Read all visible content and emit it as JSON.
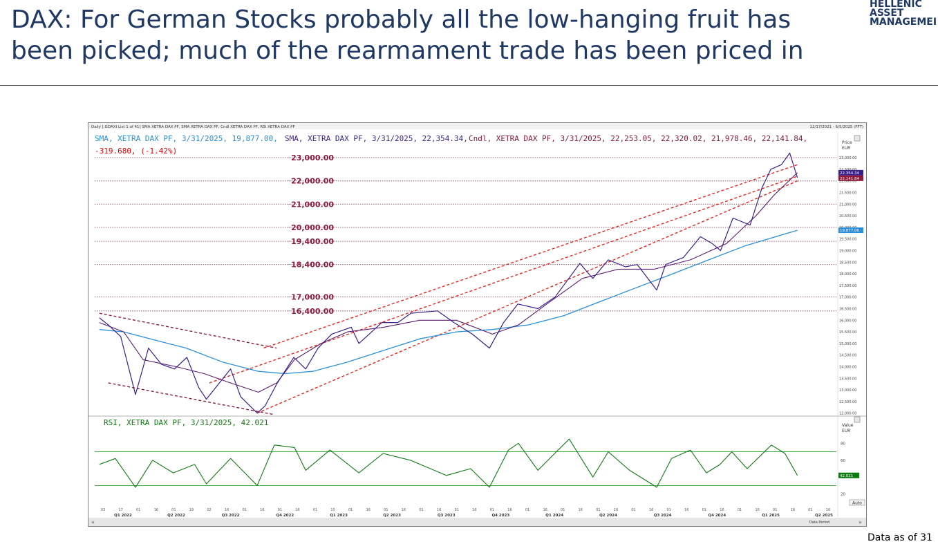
{
  "slide": {
    "title_line1": "DAX: For German Stocks probably all the low-hanging fruit has",
    "title_line2": "been picked; much of the rearmament trade has been priced in",
    "logo_lines": [
      "HELLENIC",
      "ASSET",
      "MANAGEMEI"
    ],
    "footnote": "Data as of 31"
  },
  "chart_data": {
    "type": "line",
    "header_small": "Daily [.GDAXI List 1 of 41] SMA XETRA DAX PF, SMA XETRA DAX PF, Cndl XETRA DAX PF, RSI XETRA DAX PF",
    "date_range": "12/17/2021 - 6/5/2025 (FFT)",
    "legend": {
      "sma200": "SMA, XETRA DAX PF, 3/31/2025, 19,877.00,",
      "sma50": "SMA, XETRA DAX PF, 3/31/2025, 22,354.34,",
      "candle": "Cndl, XETRA DAX PF, 3/31/2025, 22,253.05, 22,320.02, 21,978.46, 22,141.84,",
      "change": "-319.680, (-1.42%)"
    },
    "price_axis_title": [
      "Price",
      "EUR"
    ],
    "price_ticks": [
      "23,000.00",
      "22,500.00",
      "22,000.00",
      "21,500.00",
      "21,000.00",
      "20,500.00",
      "20,000.00",
      "19,500.00",
      "19,000.00",
      "18,500.00",
      "18,000.00",
      "17,500.00",
      "17,000.00",
      "16,500.00",
      "16,000.00",
      "15,500.00",
      "15,000.00",
      "14,500.00",
      "14,000.00",
      "13,500.00",
      "13,000.00",
      "12,500.00",
      "12,000.00"
    ],
    "price_tick_values": [
      23000,
      22500,
      22000,
      21500,
      21000,
      20500,
      20000,
      19500,
      19000,
      18500,
      18000,
      17500,
      17000,
      16500,
      16000,
      15500,
      15000,
      14500,
      14000,
      13500,
      13000,
      12500,
      12000
    ],
    "price_range": [
      11900,
      23600
    ],
    "price_last_labels": [
      "22,354.34",
      "22,141.84",
      "19,877.00"
    ],
    "level_labels": [
      {
        "label": "23,000.00",
        "value": 23000
      },
      {
        "label": "22,000.00",
        "value": 22000
      },
      {
        "label": "21,000.00",
        "value": 21000
      },
      {
        "label": "20,000.00",
        "value": 20000
      },
      {
        "label": "19,400.00",
        "value": 19400
      },
      {
        "label": "18,400.00",
        "value": 18400
      },
      {
        "label": "17,000.00",
        "value": 17000
      },
      {
        "label": "16,400.00",
        "value": 16400
      }
    ],
    "price_series": {
      "name": "Cndl, XETRA DAX PF",
      "dates": [
        "2022-01-05",
        "2022-01-20",
        "2022-02-10",
        "2022-03-07",
        "2022-03-29",
        "2022-04-20",
        "2022-05-12",
        "2022-06-02",
        "2022-06-22",
        "2022-07-05",
        "2022-08-15",
        "2022-09-01",
        "2022-09-29",
        "2022-10-12",
        "2022-11-02",
        "2022-11-30",
        "2022-12-20",
        "2023-01-10",
        "2023-02-02",
        "2023-03-07",
        "2023-03-20",
        "2023-04-28",
        "2023-05-25",
        "2023-06-16",
        "2023-07-31",
        "2023-08-28",
        "2023-09-28",
        "2023-10-27",
        "2023-11-20",
        "2023-12-14",
        "2024-01-17",
        "2024-02-15",
        "2024-03-28",
        "2024-04-12",
        "2024-04-19",
        "2024-05-15",
        "2024-06-13",
        "2024-07-03",
        "2024-08-05",
        "2024-08-20",
        "2024-09-19",
        "2024-10-18",
        "2024-11-07",
        "2024-11-21",
        "2024-12-12",
        "2025-01-10",
        "2025-01-30",
        "2025-02-14",
        "2025-03-04",
        "2025-03-18",
        "2025-03-31"
      ],
      "close": [
        16100,
        15800,
        15300,
        12800,
        14800,
        14100,
        13900,
        14400,
        13100,
        12600,
        13900,
        12700,
        12000,
        12300,
        13300,
        14400,
        13900,
        14800,
        15400,
        15700,
        15000,
        15900,
        15900,
        16300,
        16400,
        15900,
        15400,
        14800,
        15900,
        16700,
        16500,
        17000,
        18450,
        18000,
        17800,
        18600,
        18300,
        18400,
        17300,
        18400,
        18700,
        19600,
        19300,
        19000,
        20400,
        20100,
        21700,
        22500,
        22700,
        23200,
        22141.84
      ]
    },
    "sma_long": {
      "name": "SMA, XETRA DAX PF",
      "dates": [
        "2022-01-05",
        "2022-02-15",
        "2022-04-01",
        "2022-06-01",
        "2022-08-01",
        "2022-10-01",
        "2022-11-15",
        "2023-01-01",
        "2023-03-01",
        "2023-05-01",
        "2023-07-01",
        "2023-09-01",
        "2023-11-01",
        "2024-01-01",
        "2024-03-01",
        "2024-05-01",
        "2024-07-01",
        "2024-09-01",
        "2024-11-01",
        "2025-01-01",
        "2025-03-31"
      ],
      "values": [
        15600,
        15500,
        15200,
        14800,
        14200,
        13800,
        13700,
        13800,
        14200,
        14700,
        15200,
        15500,
        15600,
        15800,
        16200,
        16800,
        17400,
        18000,
        18600,
        19200,
        19877
      ]
    },
    "sma_short": {
      "name": "SMA, XETRA DAX PF",
      "dates": [
        "2022-01-05",
        "2022-02-15",
        "2022-03-20",
        "2022-05-15",
        "2022-07-01",
        "2022-08-15",
        "2022-10-01",
        "2022-11-01",
        "2022-12-01",
        "2023-01-15",
        "2023-03-01",
        "2023-05-01",
        "2023-07-01",
        "2023-09-01",
        "2023-11-01",
        "2023-12-15",
        "2024-02-01",
        "2024-04-01",
        "2024-06-01",
        "2024-08-01",
        "2024-10-01",
        "2024-12-01",
        "2025-01-20",
        "2025-02-20",
        "2025-03-31"
      ],
      "values": [
        15900,
        15500,
        14300,
        14000,
        13700,
        13300,
        12900,
        13300,
        14300,
        15000,
        15500,
        15700,
        16000,
        16000,
        15400,
        15800,
        16700,
        17800,
        18200,
        18200,
        18600,
        19300,
        20500,
        21400,
        22354.34
      ]
    },
    "channels": [
      {
        "name": "downtrend-upper",
        "color": "#8b1a3c",
        "points": [
          [
            "2022-01-05",
            16300
          ],
          [
            "2022-11-01",
            14800
          ]
        ]
      },
      {
        "name": "downtrend-lower",
        "color": "#8b1a3c",
        "points": [
          [
            "2022-01-20",
            13300
          ],
          [
            "2022-10-25",
            11950
          ]
        ]
      },
      {
        "name": "uptrend-upper",
        "color": "#e8231c",
        "points": [
          [
            "2022-10-10",
            14800
          ],
          [
            "2025-03-31",
            22700
          ]
        ]
      },
      {
        "name": "uptrend-lower",
        "color": "#e8231c",
        "points": [
          [
            "2022-09-29",
            12000
          ],
          [
            "2025-03-31",
            22000
          ]
        ]
      },
      {
        "name": "uptrend-mid",
        "color": "#e8231c",
        "points": [
          [
            "2022-07-10",
            13300
          ],
          [
            "2025-03-31",
            22200
          ]
        ]
      }
    ],
    "rsi": {
      "legend": "RSI, XETRA DAX PF, 3/31/2025, 42.021",
      "axis_title": [
        "Value",
        "EUR"
      ],
      "ticks": [
        "80",
        "60",
        "40",
        "20"
      ],
      "tick_values": [
        80,
        60,
        40,
        20
      ],
      "range": [
        5,
        95
      ],
      "levels": [
        70,
        30
      ],
      "last_label": "42.021",
      "dates": [
        "2022-01-05",
        "2022-02-01",
        "2022-03-07",
        "2022-04-05",
        "2022-05-10",
        "2022-06-15",
        "2022-07-05",
        "2022-08-15",
        "2022-09-29",
        "2022-10-28",
        "2022-12-01",
        "2022-12-20",
        "2023-01-30",
        "2023-03-20",
        "2023-04-30",
        "2023-06-15",
        "2023-08-15",
        "2023-09-25",
        "2023-10-27",
        "2023-11-28",
        "2023-12-15",
        "2024-01-17",
        "2024-02-20",
        "2024-03-10",
        "2024-04-19",
        "2024-05-15",
        "2024-06-20",
        "2024-08-05",
        "2024-08-30",
        "2024-10-01",
        "2024-10-28",
        "2024-11-20",
        "2024-12-10",
        "2025-01-05",
        "2025-02-15",
        "2025-03-10",
        "2025-03-31"
      ],
      "values": [
        55,
        62,
        28,
        60,
        45,
        55,
        32,
        62,
        30,
        78,
        75,
        48,
        72,
        45,
        68,
        60,
        42,
        50,
        28,
        72,
        80,
        48,
        72,
        85,
        40,
        70,
        48,
        28,
        62,
        72,
        45,
        55,
        70,
        50,
        78,
        68,
        42.021
      ]
    },
    "x_months": [
      "03",
      "17",
      "01",
      "16",
      "01",
      "19",
      "02",
      "16",
      "01",
      "16",
      "01",
      "16",
      "01",
      "15",
      "01",
      "16",
      "01",
      "16",
      "01",
      "16",
      "01",
      "16",
      "01",
      "16",
      "01",
      "16",
      "01",
      "16",
      "01",
      "16",
      "01",
      "16",
      "01",
      "16",
      "01",
      "16",
      "01",
      "16",
      "01",
      "16",
      "01",
      "16"
    ],
    "quarters": [
      {
        "label": "Q1 2022",
        "date": "2022-02-14"
      },
      {
        "label": "Q2 2022",
        "date": "2022-05-15"
      },
      {
        "label": "Q3 2022",
        "date": "2022-08-15"
      },
      {
        "label": "Q4 2022",
        "date": "2022-11-15"
      },
      {
        "label": "Q1 2023",
        "date": "2023-02-14"
      },
      {
        "label": "Q2 2023",
        "date": "2023-05-15"
      },
      {
        "label": "Q3 2023",
        "date": "2023-08-15"
      },
      {
        "label": "Q4 2023",
        "date": "2023-11-15"
      },
      {
        "label": "Q1 2024",
        "date": "2024-02-14"
      },
      {
        "label": "Q2 2024",
        "date": "2024-05-15"
      },
      {
        "label": "Q3 2024",
        "date": "2024-08-15"
      },
      {
        "label": "Q4 2024",
        "date": "2024-11-15"
      },
      {
        "label": "Q1 2025",
        "date": "2025-02-14"
      },
      {
        "label": "Q2 2025",
        "date": "2025-05-15"
      }
    ],
    "x_range": [
      "2021-12-28",
      "2025-06-05"
    ],
    "bottom_right_label": "Data Period",
    "auto_label": "Auto",
    "colors": {
      "price": "#3a1f8a",
      "sma_short": "#5a1a6e",
      "sma_long": "#2a8fd8",
      "level": "#8b1a3c",
      "rsi": "#0f7a0f",
      "rsi_level": "#2aa02a",
      "change": "#e00000"
    }
  }
}
